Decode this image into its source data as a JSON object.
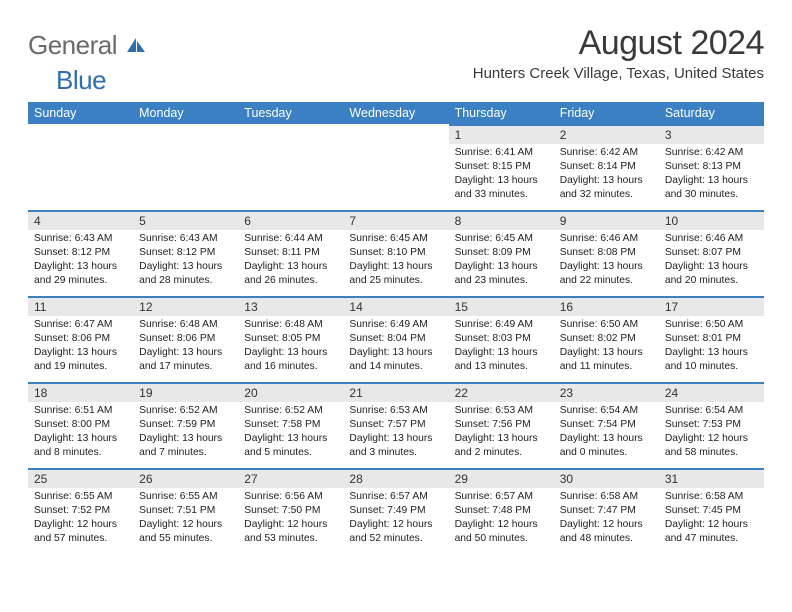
{
  "logo": {
    "gray": "General",
    "blue": "Blue"
  },
  "title": "August 2024",
  "location": "Hunters Creek Village, Texas, United States",
  "colors": {
    "header_bg": "#3a80c3",
    "header_text": "#ffffff",
    "daynum_bg": "#e8e8e8",
    "day_border": "#3a80c3",
    "text": "#222222",
    "title_text": "#3a3a3a",
    "logo_gray": "#6a6a6a",
    "logo_blue": "#2f6fb0"
  },
  "fonts": {
    "title_size": 34,
    "location_size": 15,
    "header_size": 12.5,
    "daynum_size": 12,
    "body_size": 10.3
  },
  "day_headers": [
    "Sunday",
    "Monday",
    "Tuesday",
    "Wednesday",
    "Thursday",
    "Friday",
    "Saturday"
  ],
  "weeks": [
    [
      null,
      null,
      null,
      null,
      {
        "n": "1",
        "sr": "6:41 AM",
        "ss": "8:15 PM",
        "dl": "13 hours and 33 minutes."
      },
      {
        "n": "2",
        "sr": "6:42 AM",
        "ss": "8:14 PM",
        "dl": "13 hours and 32 minutes."
      },
      {
        "n": "3",
        "sr": "6:42 AM",
        "ss": "8:13 PM",
        "dl": "13 hours and 30 minutes."
      }
    ],
    [
      {
        "n": "4",
        "sr": "6:43 AM",
        "ss": "8:12 PM",
        "dl": "13 hours and 29 minutes."
      },
      {
        "n": "5",
        "sr": "6:43 AM",
        "ss": "8:12 PM",
        "dl": "13 hours and 28 minutes."
      },
      {
        "n": "6",
        "sr": "6:44 AM",
        "ss": "8:11 PM",
        "dl": "13 hours and 26 minutes."
      },
      {
        "n": "7",
        "sr": "6:45 AM",
        "ss": "8:10 PM",
        "dl": "13 hours and 25 minutes."
      },
      {
        "n": "8",
        "sr": "6:45 AM",
        "ss": "8:09 PM",
        "dl": "13 hours and 23 minutes."
      },
      {
        "n": "9",
        "sr": "6:46 AM",
        "ss": "8:08 PM",
        "dl": "13 hours and 22 minutes."
      },
      {
        "n": "10",
        "sr": "6:46 AM",
        "ss": "8:07 PM",
        "dl": "13 hours and 20 minutes."
      }
    ],
    [
      {
        "n": "11",
        "sr": "6:47 AM",
        "ss": "8:06 PM",
        "dl": "13 hours and 19 minutes."
      },
      {
        "n": "12",
        "sr": "6:48 AM",
        "ss": "8:06 PM",
        "dl": "13 hours and 17 minutes."
      },
      {
        "n": "13",
        "sr": "6:48 AM",
        "ss": "8:05 PM",
        "dl": "13 hours and 16 minutes."
      },
      {
        "n": "14",
        "sr": "6:49 AM",
        "ss": "8:04 PM",
        "dl": "13 hours and 14 minutes."
      },
      {
        "n": "15",
        "sr": "6:49 AM",
        "ss": "8:03 PM",
        "dl": "13 hours and 13 minutes."
      },
      {
        "n": "16",
        "sr": "6:50 AM",
        "ss": "8:02 PM",
        "dl": "13 hours and 11 minutes."
      },
      {
        "n": "17",
        "sr": "6:50 AM",
        "ss": "8:01 PM",
        "dl": "13 hours and 10 minutes."
      }
    ],
    [
      {
        "n": "18",
        "sr": "6:51 AM",
        "ss": "8:00 PM",
        "dl": "13 hours and 8 minutes."
      },
      {
        "n": "19",
        "sr": "6:52 AM",
        "ss": "7:59 PM",
        "dl": "13 hours and 7 minutes."
      },
      {
        "n": "20",
        "sr": "6:52 AM",
        "ss": "7:58 PM",
        "dl": "13 hours and 5 minutes."
      },
      {
        "n": "21",
        "sr": "6:53 AM",
        "ss": "7:57 PM",
        "dl": "13 hours and 3 minutes."
      },
      {
        "n": "22",
        "sr": "6:53 AM",
        "ss": "7:56 PM",
        "dl": "13 hours and 2 minutes."
      },
      {
        "n": "23",
        "sr": "6:54 AM",
        "ss": "7:54 PM",
        "dl": "13 hours and 0 minutes."
      },
      {
        "n": "24",
        "sr": "6:54 AM",
        "ss": "7:53 PM",
        "dl": "12 hours and 58 minutes."
      }
    ],
    [
      {
        "n": "25",
        "sr": "6:55 AM",
        "ss": "7:52 PM",
        "dl": "12 hours and 57 minutes."
      },
      {
        "n": "26",
        "sr": "6:55 AM",
        "ss": "7:51 PM",
        "dl": "12 hours and 55 minutes."
      },
      {
        "n": "27",
        "sr": "6:56 AM",
        "ss": "7:50 PM",
        "dl": "12 hours and 53 minutes."
      },
      {
        "n": "28",
        "sr": "6:57 AM",
        "ss": "7:49 PM",
        "dl": "12 hours and 52 minutes."
      },
      {
        "n": "29",
        "sr": "6:57 AM",
        "ss": "7:48 PM",
        "dl": "12 hours and 50 minutes."
      },
      {
        "n": "30",
        "sr": "6:58 AM",
        "ss": "7:47 PM",
        "dl": "12 hours and 48 minutes."
      },
      {
        "n": "31",
        "sr": "6:58 AM",
        "ss": "7:45 PM",
        "dl": "12 hours and 47 minutes."
      }
    ]
  ],
  "labels": {
    "sunrise": "Sunrise: ",
    "sunset": "Sunset: ",
    "daylight": "Daylight: "
  }
}
